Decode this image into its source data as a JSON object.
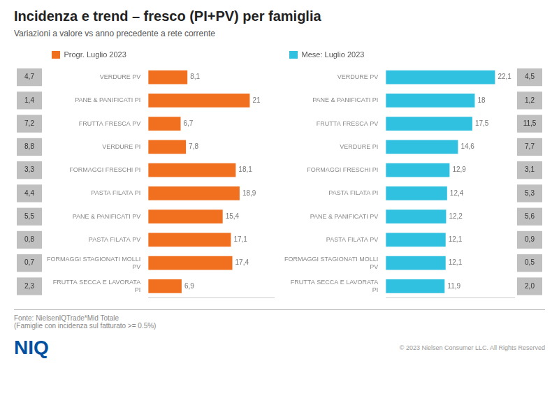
{
  "title": "Incidenza e trend – fresco (PI+PV) per famiglia",
  "subtitle": "Variazioni  a valore vs anno precedente  a rete corrente",
  "annotations": [
    "Fonte: NielsenIQTrade*Mid Totale\n(Famiglie con incidenza sul fatturato >= 0.5%)",
    "© 2023 Nielsen Consumer LLC. All Rights Reserved",
    "NIQ"
  ],
  "chart_data": [
    {
      "type": "bar",
      "orientation": "horizontal",
      "categories": [
        "VERDURE PV",
        "PANE & PANIFICATI PI",
        "FRUTTA FRESCA PV",
        "VERDURE PI",
        "FORMAGGI FRESCHI PI",
        "PASTA FILATA PI",
        "PANE & PANIFICATI PV",
        "PASTA FILATA PV",
        "FORMAGGI STAGIONATI MOLLI\nPV",
        "FRUTTA SECCA E LAVORATA\nPI"
      ],
      "series": [
        {
          "name": "Progr. Luglio 2023",
          "color": "#F07020",
          "values": [
            8.1,
            21.0,
            6.7,
            7.8,
            18.1,
            18.9,
            15.4,
            17.1,
            17.4,
            6.9
          ],
          "value_labels": [
            "8,1",
            "21",
            "6,7",
            "7,8",
            "18,1",
            "18,9",
            "15,4",
            "17,1",
            "17,4",
            "6,9"
          ]
        }
      ],
      "annotations": [
        "4,7",
        "1,4",
        "7,2",
        "8,8",
        "3,3",
        "4,4",
        "5,5",
        "0,8",
        "0,7",
        "2,3"
      ],
      "xlim": [
        0,
        26
      ],
      "grid": false,
      "legend": "top",
      "data_labels": true,
      "tick_labels": "y"
    },
    {
      "type": "bar",
      "orientation": "horizontal",
      "categories": [
        "VERDURE PV",
        "PANE & PANIFICATI PI",
        "FRUTTA FRESCA PV",
        "VERDURE PI",
        "FORMAGGI FRESCHI PI",
        "PASTA FILATA PI",
        "PANE & PANIFICATI PV",
        "PASTA FILATA PV",
        "FORMAGGI STAGIONATI MOLLI\nPV",
        "FRUTTA SECCA E LAVORATA\nPI"
      ],
      "series": [
        {
          "name": "Mese: Luglio 2023",
          "color": "#30C0E0",
          "values": [
            22.1,
            18.0,
            17.5,
            14.6,
            12.9,
            12.4,
            12.2,
            12.1,
            12.1,
            11.9
          ],
          "value_labels": [
            "22,1",
            "18",
            "17,5",
            "14,6",
            "12,9",
            "12,4",
            "12,2",
            "12,1",
            "12,1",
            "11,9"
          ]
        }
      ],
      "annotations": [
        "4,5",
        "1,2",
        "11,5",
        "7,7",
        "3,1",
        "5,3",
        "5,6",
        "0,9",
        "0,5",
        "2,0"
      ],
      "xlim": [
        0,
        26
      ],
      "grid": false,
      "legend": "top",
      "data_labels": true,
      "tick_labels": "y"
    }
  ]
}
